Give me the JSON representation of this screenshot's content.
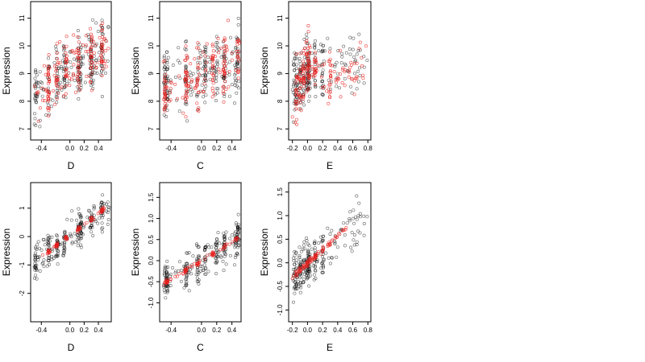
{
  "chart_data": [
    {
      "type": "scatter",
      "xlabel": "D",
      "ylabel": "Expression",
      "xlim": [
        -0.55,
        0.58
      ],
      "ylim": [
        6.6,
        11.6
      ],
      "xticks": [
        -0.4,
        0.0,
        0.2,
        0.4
      ],
      "xtick_labels": [
        "-0.4",
        "0.0",
        "0.2",
        "0.4"
      ],
      "yticks": [
        7,
        8,
        9,
        10,
        11
      ],
      "ytick_labels": [
        "7",
        "8",
        "9",
        "10",
        "11"
      ],
      "series": [
        {
          "color": "#000000",
          "trend": [
            [
              -0.5,
              8.3
            ],
            [
              0.05,
              9.2
            ],
            [
              0.55,
              9.9
            ]
          ],
          "spread": 1.0,
          "clusters": [
            -0.48,
            -0.3,
            -0.18,
            -0.08,
            0.12,
            0.15,
            0.3,
            0.45
          ],
          "count": 260
        },
        {
          "color": "#e8211e",
          "trend": [
            [
              -0.5,
              8.2
            ],
            [
              0.05,
              9.2
            ],
            [
              0.55,
              10.0
            ]
          ],
          "spread": 0.95,
          "clusters": [
            -0.3,
            -0.18,
            -0.05,
            0.12,
            0.3,
            0.45
          ],
          "count": 200
        }
      ]
    },
    {
      "type": "scatter",
      "xlabel": "C",
      "ylabel": "Expression",
      "xlim": [
        -0.55,
        0.52
      ],
      "ylim": [
        6.6,
        11.6
      ],
      "xticks": [
        -0.4,
        0.0,
        0.2,
        0.4
      ],
      "xtick_labels": [
        "-0.4",
        "0.0",
        "0.2",
        "0.4"
      ],
      "yticks": [
        7,
        8,
        9,
        10,
        11
      ],
      "ytick_labels": [
        "7",
        "8",
        "9",
        "10",
        "11"
      ],
      "series": [
        {
          "color": "#000000",
          "trend": [
            [
              -0.5,
              8.6
            ],
            [
              0.0,
              9.0
            ],
            [
              0.5,
              9.4
            ]
          ],
          "spread": 1.1,
          "clusters": [
            -0.48,
            -0.45,
            -0.2,
            -0.05,
            0.05,
            0.2,
            0.3,
            0.45,
            0.48
          ],
          "count": 260
        },
        {
          "color": "#e8211e",
          "trend": [
            [
              -0.5,
              8.4
            ],
            [
              0.0,
              9.0
            ],
            [
              0.5,
              9.6
            ]
          ],
          "spread": 1.1,
          "clusters": [
            -0.48,
            -0.2,
            -0.05,
            0.15,
            0.3,
            0.48
          ],
          "count": 200
        }
      ]
    },
    {
      "type": "scatter",
      "xlabel": "E",
      "ylabel": "Expression",
      "xlim": [
        -0.25,
        0.84
      ],
      "ylim": [
        6.6,
        11.6
      ],
      "xticks": [
        -0.2,
        0.0,
        0.2,
        0.4,
        0.6,
        0.8
      ],
      "xtick_labels": [
        "-0.2",
        "0.0",
        "0.2",
        "0.4",
        "0.6",
        "0.8"
      ],
      "yticks": [
        7,
        8,
        9,
        10,
        11
      ],
      "ytick_labels": [
        "7",
        "8",
        "9",
        "10",
        "11"
      ],
      "series": [
        {
          "color": "#000000",
          "trend": [
            [
              -0.2,
              8.5
            ],
            [
              0.0,
              9.1
            ],
            [
              0.3,
              9.3
            ],
            [
              0.8,
              9.5
            ]
          ],
          "spread": 1.05,
          "clusters": [
            -0.18,
            -0.15,
            -0.1,
            -0.05,
            0.0,
            0.02,
            0.1,
            0.2
          ],
          "count": 240
        },
        {
          "color": "#e8211e",
          "trend": [
            [
              -0.2,
              8.0
            ],
            [
              0.0,
              9.4
            ],
            [
              0.3,
              9.0
            ],
            [
              0.8,
              9.2
            ]
          ],
          "spread": 1.0,
          "clusters": [
            -0.15,
            -0.1,
            -0.05,
            0.0,
            0.02,
            0.1,
            0.3
          ],
          "count": 200
        }
      ]
    },
    {
      "type": "scatter",
      "xlabel": "D",
      "ylabel": "Expression",
      "xlim": [
        -0.55,
        0.58
      ],
      "ylim": [
        -3.0,
        1.9
      ],
      "xticks": [
        -0.4,
        0.0,
        0.2,
        0.4
      ],
      "xtick_labels": [
        "-0.4",
        "0.0",
        "0.2",
        "0.4"
      ],
      "yticks": [
        -2,
        -1,
        0,
        1
      ],
      "ytick_labels": [
        "-2",
        "-1",
        "0",
        "1"
      ],
      "series": [
        {
          "color": "#000000",
          "trend": [
            [
              -0.5,
              -0.9
            ],
            [
              0.55,
              1.05
            ]
          ],
          "spread": 0.55,
          "clusters": [
            -0.48,
            -0.3,
            -0.18,
            -0.08,
            0.12,
            0.15,
            0.3,
            0.45
          ],
          "count": 260
        },
        {
          "color": "#e8211e",
          "trend": [
            [
              -0.5,
              -0.9
            ],
            [
              0.5,
              1.0
            ]
          ],
          "spread": 0.07,
          "clusters": [
            -0.3,
            -0.18,
            -0.05,
            0.12,
            0.3,
            0.45
          ],
          "count": 90
        }
      ]
    },
    {
      "type": "scatter",
      "xlabel": "C",
      "ylabel": "Expression",
      "xlim": [
        -0.55,
        0.52
      ],
      "ylim": [
        -1.45,
        1.85
      ],
      "xticks": [
        -0.4,
        0.0,
        0.2,
        0.4
      ],
      "xtick_labels": [
        "-0.4",
        "0.0",
        "0.2",
        "0.4"
      ],
      "yticks": [
        -1.0,
        -0.5,
        0.0,
        0.5,
        1.0,
        1.5
      ],
      "ytick_labels": [
        "-1.0",
        "-0.5",
        "0.0",
        "0.5",
        "1.0",
        "1.5"
      ],
      "series": [
        {
          "color": "#000000",
          "trend": [
            [
              -0.5,
              -0.5
            ],
            [
              0.5,
              0.55
            ]
          ],
          "spread": 0.45,
          "clusters": [
            -0.48,
            -0.45,
            -0.2,
            -0.05,
            0.05,
            0.2,
            0.3,
            0.45,
            0.48
          ],
          "count": 260
        },
        {
          "color": "#e8211e",
          "trend": [
            [
              -0.5,
              -0.55
            ],
            [
              0.5,
              0.55
            ]
          ],
          "spread": 0.05,
          "clusters": [
            -0.45,
            -0.2,
            -0.05,
            0.15,
            0.3,
            0.45
          ],
          "count": 90
        }
      ]
    },
    {
      "type": "scatter",
      "xlabel": "E",
      "ylabel": "Expression",
      "xlim": [
        -0.25,
        0.84
      ],
      "ylim": [
        -1.25,
        1.7
      ],
      "xticks": [
        -0.2,
        0.0,
        0.2,
        0.4,
        0.6,
        0.8
      ],
      "xtick_labels": [
        "-0.2",
        "0.0",
        "0.2",
        "0.4",
        "0.6",
        "0.8"
      ],
      "yticks": [
        -1.0,
        -0.5,
        0.0,
        0.5,
        1.0,
        1.5
      ],
      "ytick_labels": [
        "-1.0",
        "-0.5",
        "0.0",
        "0.5",
        "1.0",
        "1.5"
      ],
      "series": [
        {
          "color": "#000000",
          "trend": [
            [
              -0.2,
              -0.3
            ],
            [
              0.8,
              1.0
            ]
          ],
          "spread": 0.45,
          "clusters": [
            -0.18,
            -0.15,
            -0.1,
            -0.05,
            0.0,
            0.02,
            0.1,
            0.2
          ],
          "count": 240
        },
        {
          "color": "#e8211e",
          "trend": [
            [
              -0.2,
              -0.3
            ],
            [
              0.35,
              0.5
            ],
            [
              0.6,
              0.9
            ]
          ],
          "spread": 0.06,
          "clusters": [
            -0.15,
            -0.1,
            -0.05,
            0.0,
            0.05,
            0.1,
            0.2,
            0.3
          ],
          "count": 90
        }
      ]
    }
  ]
}
